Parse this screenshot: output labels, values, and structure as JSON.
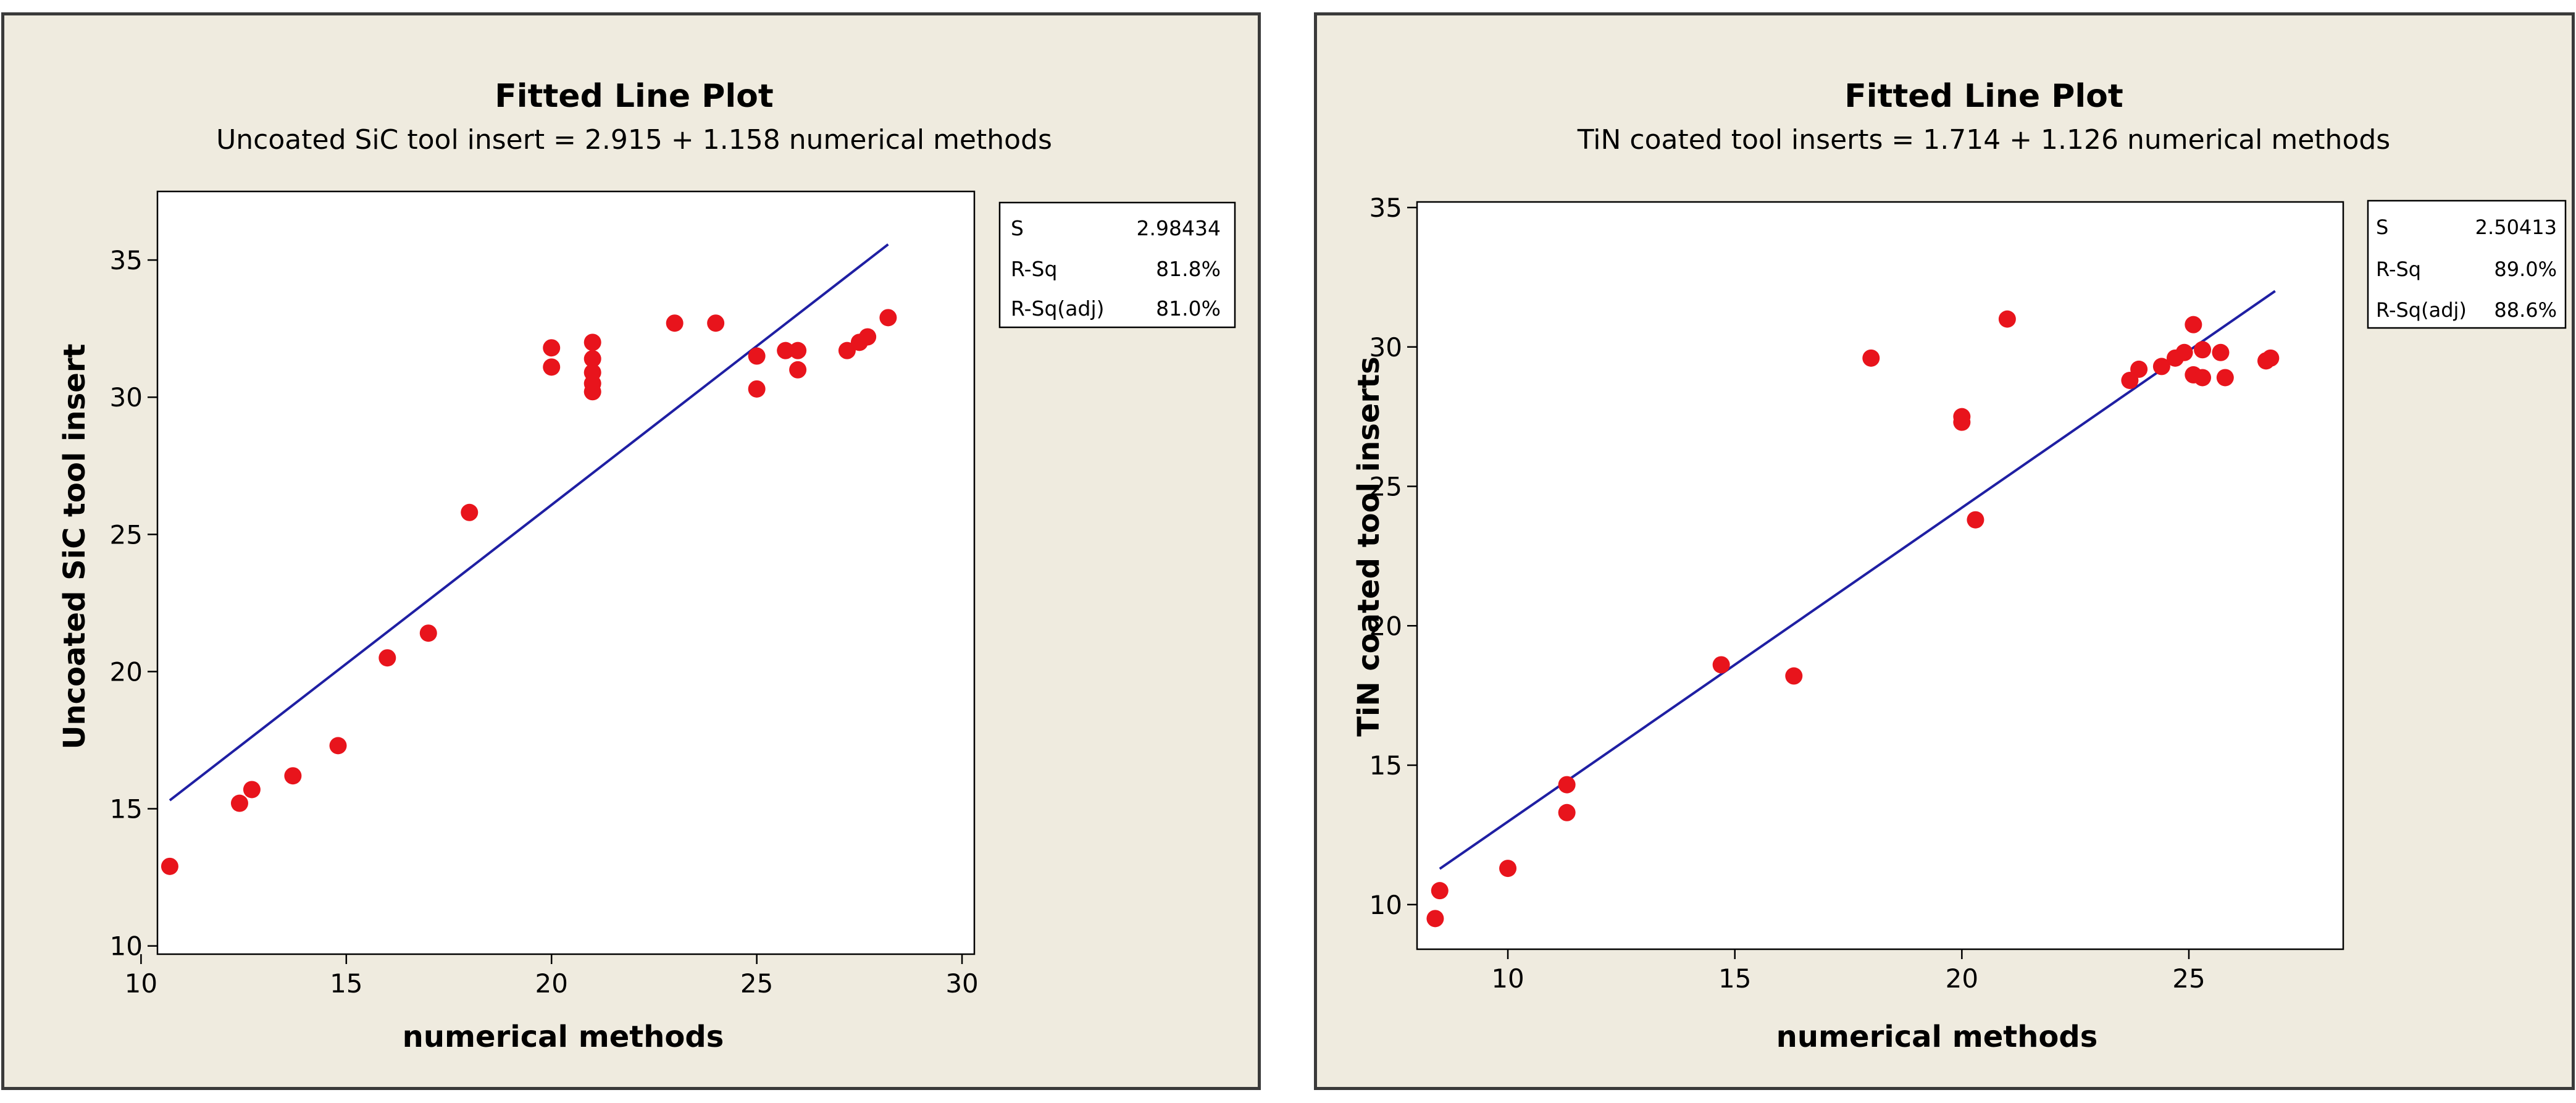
{
  "chart_data": [
    {
      "type": "scatter",
      "title": "Fitted Line Plot",
      "subtitle": "Uncoated SiC tool insert =  2.915 + 1.158 numerical methods",
      "xlabel": "numerical methods",
      "ylabel": "Uncoated SiC tool insert",
      "xlim": [
        10.4,
        30.3
      ],
      "ylim": [
        9.7,
        37.5
      ],
      "xticks": [
        10,
        15,
        20,
        25,
        30
      ],
      "yticks": [
        10,
        15,
        20,
        25,
        30,
        35
      ],
      "grid": false,
      "fit_line": {
        "intercept": 2.915,
        "slope": 1.158,
        "x_from": 10.7,
        "x_to": 28.2,
        "color": "#1f1fa3"
      },
      "stats": [
        {
          "label": "S",
          "value": "2.98434"
        },
        {
          "label": "R-Sq",
          "value": "81.8%"
        },
        {
          "label": "R-Sq(adj)",
          "value": "81.0%"
        }
      ],
      "point_color": "#e8141c",
      "points": [
        [
          10.7,
          12.9
        ],
        [
          12.4,
          15.2
        ],
        [
          12.7,
          15.7
        ],
        [
          13.7,
          16.2
        ],
        [
          14.8,
          17.3
        ],
        [
          16.0,
          20.5
        ],
        [
          17.0,
          21.4
        ],
        [
          18.0,
          25.8
        ],
        [
          20.0,
          31.8
        ],
        [
          20.0,
          31.1
        ],
        [
          21.0,
          32.0
        ],
        [
          21.0,
          31.4
        ],
        [
          21.0,
          30.9
        ],
        [
          21.0,
          30.5
        ],
        [
          21.0,
          30.2
        ],
        [
          23.0,
          32.7
        ],
        [
          24.0,
          32.7
        ],
        [
          25.0,
          31.5
        ],
        [
          25.0,
          30.3
        ],
        [
          25.7,
          31.7
        ],
        [
          26.0,
          31.7
        ],
        [
          26.0,
          31.0
        ],
        [
          27.2,
          31.7
        ],
        [
          27.5,
          32.0
        ],
        [
          27.7,
          32.2
        ],
        [
          28.2,
          32.9
        ]
      ]
    },
    {
      "type": "scatter",
      "title": "Fitted Line Plot",
      "subtitle": "TiN coated tool inserts =  1.714 + 1.126 numerical methods",
      "xlabel": "numerical methods",
      "ylabel": "TiN coated tool inserts",
      "xlim": [
        8.0,
        28.4
      ],
      "ylim": [
        8.4,
        35.2
      ],
      "xticks": [
        10,
        15,
        20,
        25
      ],
      "yticks": [
        10,
        15,
        20,
        25,
        30,
        35
      ],
      "grid": false,
      "fit_line": {
        "intercept": 1.714,
        "slope": 1.126,
        "x_from": 8.5,
        "x_to": 26.9,
        "color": "#1f1fa3"
      },
      "stats": [
        {
          "label": "S",
          "value": "2.50413"
        },
        {
          "label": "R-Sq",
          "value": "89.0%"
        },
        {
          "label": "R-Sq(adj)",
          "value": "88.6%"
        }
      ],
      "point_color": "#e8141c",
      "points": [
        [
          8.4,
          9.5
        ],
        [
          8.5,
          10.5
        ],
        [
          10.0,
          11.3
        ],
        [
          11.3,
          14.3
        ],
        [
          11.3,
          13.3
        ],
        [
          14.7,
          18.6
        ],
        [
          16.3,
          18.2
        ],
        [
          18.0,
          29.6
        ],
        [
          20.0,
          27.5
        ],
        [
          20.0,
          27.3
        ],
        [
          20.3,
          23.8
        ],
        [
          21.0,
          31.0
        ],
        [
          23.7,
          28.8
        ],
        [
          23.9,
          29.2
        ],
        [
          24.4,
          29.3
        ],
        [
          24.7,
          29.6
        ],
        [
          24.9,
          29.8
        ],
        [
          25.1,
          30.8
        ],
        [
          25.1,
          29.0
        ],
        [
          25.3,
          29.9
        ],
        [
          25.3,
          28.9
        ],
        [
          25.7,
          29.8
        ],
        [
          25.8,
          28.9
        ],
        [
          26.7,
          29.5
        ],
        [
          26.8,
          29.6
        ]
      ]
    }
  ]
}
